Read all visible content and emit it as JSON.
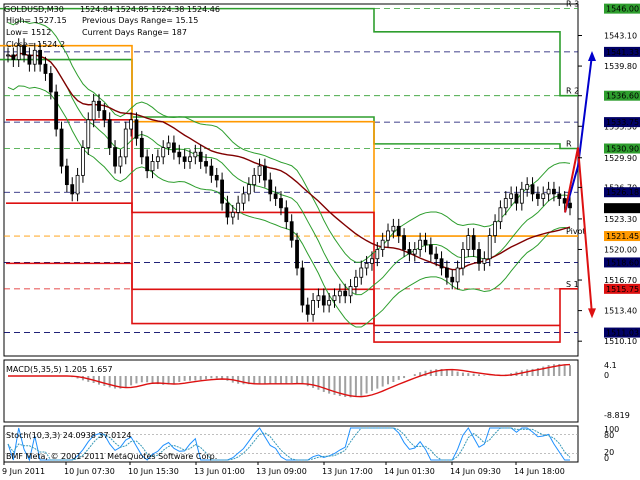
{
  "chart_data": {
    "type": "candlestick",
    "symbol_title": "GOLDUSD,M30",
    "ohlc_text": "1524.84 1524.85 1524.38 1524.46",
    "info_lines": [
      {
        "left": "High= 1527.15",
        "right": "Previous Days Range= 15.15"
      },
      {
        "left": "Low= 1512",
        "right": "Current Days Range= 187"
      },
      {
        "left": "Close= 1524.2",
        "right": ""
      }
    ],
    "copyright": "BMF Meta, © 2001-2011 MetaQuotes Software Corp.",
    "y_range": [
      1508.5,
      1546.5
    ],
    "price_ticks": [
      1543.1,
      1539.8,
      1536.6,
      1533.3,
      1529.9,
      1526.7,
      1523.3,
      1520.0,
      1516.7,
      1513.4,
      1510.1
    ],
    "time_labels": [
      "9 Jun 2011",
      "10 Jun 07:30",
      "10 Jun 15:30",
      "13 Jun 01:00",
      "13 Jun 09:00",
      "13 Jun 17:00",
      "14 Jun 01:30",
      "14 Jun 09:30",
      "14 Jun 18:00"
    ],
    "levels": [
      {
        "name": "R3",
        "label": "R 3",
        "price": 1546.0,
        "color": "#2e9e2e",
        "badge": "1546.00"
      },
      {
        "name": "R2",
        "label": "R 2",
        "price": 1536.6,
        "color": "#2e9e2e",
        "badge": "1536.60"
      },
      {
        "name": "R1",
        "label": "R",
        "price": 1530.9,
        "color": "#2e9e2e",
        "badge": "1530.90"
      },
      {
        "name": "Pivot",
        "label": "Pivot",
        "price": 1521.45,
        "color": "#ff9900",
        "badge": "1521.45"
      },
      {
        "name": "S1",
        "label": "S 1",
        "price": 1515.75,
        "color": "#dd1111",
        "badge": "1515.75"
      }
    ],
    "price_badges": [
      {
        "value": "1541.33",
        "price": 1541.33,
        "bg": "#000066",
        "fg": "#ffffff"
      },
      {
        "value": "1533.75",
        "price": 1533.75,
        "bg": "#000066",
        "fg": "#ffffff"
      },
      {
        "value": "1526.18",
        "price": 1526.18,
        "bg": "#000066",
        "fg": "#ffffff"
      },
      {
        "value": "1524.46",
        "price": 1524.46,
        "bg": "#000000",
        "fg": "#ffffff"
      },
      {
        "value": "1518.60",
        "price": 1518.6,
        "bg": "#000066",
        "fg": "#ffffff"
      },
      {
        "value": "1511.03",
        "price": 1511.03,
        "bg": "#000066",
        "fg": "#ffffff"
      }
    ],
    "dashed_navy_levels": [
      1541.33,
      1533.75,
      1526.18,
      1518.6,
      1511.03
    ],
    "closes": [
      1541,
      1540.5,
      1542,
      1541,
      1540,
      1541.5,
      1540,
      1539,
      1537,
      1533,
      1529,
      1527,
      1526,
      1528,
      1531,
      1534,
      1536,
      1535,
      1534,
      1531,
      1529,
      1530,
      1533,
      1534,
      1532,
      1530,
      1528.5,
      1529.5,
      1530,
      1531,
      1531.5,
      1530.5,
      1530,
      1529.5,
      1530,
      1530.5,
      1529.5,
      1529,
      1528,
      1527.5,
      1525,
      1523.5,
      1524,
      1525,
      1526,
      1527,
      1528,
      1529,
      1527.5,
      1526,
      1525.5,
      1524.5,
      1523,
      1521,
      1518,
      1514,
      1513,
      1514.5,
      1515,
      1514,
      1514.5,
      1515,
      1515.5,
      1515,
      1516,
      1517,
      1518,
      1518.5,
      1519,
      1520,
      1521,
      1522,
      1522.5,
      1521.5,
      1520,
      1519.5,
      1520,
      1521,
      1520.5,
      1519.5,
      1519,
      1518,
      1517,
      1516.5,
      1518,
      1520,
      1521.5,
      1520,
      1518.5,
      1519,
      1521.5,
      1523,
      1524.5,
      1525.5,
      1526,
      1525,
      1526.5,
      1527,
      1526,
      1525.5,
      1526,
      1526.5,
      1526,
      1525.5,
      1525,
      1524.5
    ],
    "indicators": {
      "macd": {
        "title": "MACD(5,35,5) 1.205 1.657",
        "ticks": [
          "4.1",
          "0",
          "-8.819"
        ]
      },
      "stoch": {
        "title": "Stoch(10,3,3) 24.0938 37.0124",
        "ticks": [
          "100",
          "80",
          "20",
          "0"
        ]
      }
    },
    "colors": {
      "candle": "#000000",
      "band": "#2e9e2e",
      "ma_slow": "#800000",
      "ma_fast": "#dd1111",
      "pivot": "#ff9900",
      "trend_up": "#0000cc",
      "trend_dn": "#dd1111",
      "macd_hist": "#a0a0a0",
      "macd_signal": "#dd1111",
      "stoch_main": "#1e90ff",
      "stoch_sig": "#3a9ab8"
    }
  }
}
